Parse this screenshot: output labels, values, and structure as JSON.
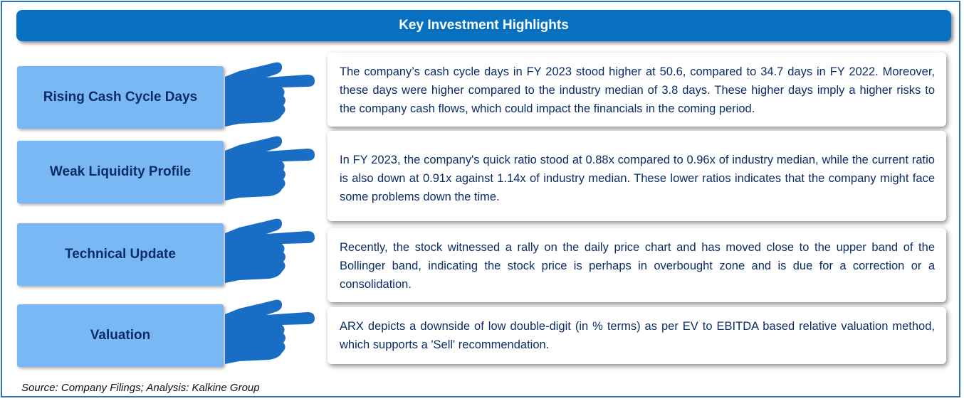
{
  "title": "Key Investment Highlights",
  "highlights": [
    {
      "label": "Rising Cash Cycle Days",
      "text": "The company’s cash cycle days in FY 2023 stood higher at 50.6, compared to 34.7 days in FY 2022. Moreover, these days were higher compared to the industry median of 3.8 days. These higher days imply a higher risks to the company cash flows, which could impact the financials in the coming period."
    },
    {
      "label": "Weak Liquidity Profile",
      "text": "In FY 2023, the company's quick ratio stood at 0.88x compared to 0.96x of industry median, while the current ratio is also down at 0.91x against 1.14x of industry median. These lower ratios indicates that the company might face some problems down the time."
    },
    {
      "label": "Technical Update",
      "text": "Recently, the stock witnessed a rally on the daily price chart and has moved close to the upper band of the Bollinger band, indicating the stock price is perhaps in overbought zone and is due for a correction or a consolidation."
    },
    {
      "label": "Valuation",
      "text": "ARX depicts a downside of low double-digit (in % terms) as per EV to EBITDA based relative valuation method, which supports a 'Sell' recommendation."
    }
  ],
  "source": "Source: Company Filings; Analysis: Kalkine Group",
  "colors": {
    "banner": "#0870c1",
    "label_fill": "#7ab8f5",
    "label_text": "#0b2c66",
    "hand_icon": "#1a6dc4",
    "frame_border": "#2e75b6"
  },
  "icons": {
    "pointer": "pointing-hand-icon"
  }
}
